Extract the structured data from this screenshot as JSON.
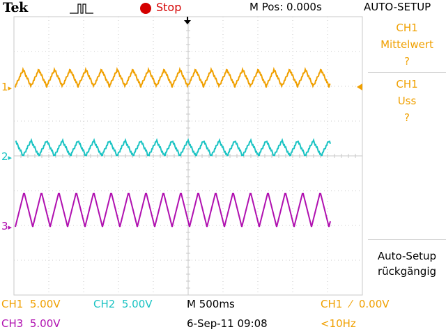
{
  "header": {
    "brand": "Tek",
    "status": "Stop",
    "mpos": "M Pos: 0.000s",
    "menu_title": "AUTO-SETUP"
  },
  "menu": {
    "item1": [
      "CH1",
      "Mittelwert",
      "?"
    ],
    "item2": [
      "CH1",
      "Uss",
      "?"
    ],
    "item3": [
      "Auto-Setup",
      "rückgängig"
    ]
  },
  "channels": {
    "ch1_marker": "1",
    "ch2_marker": "2",
    "ch3_marker": "3"
  },
  "footer": {
    "ch1": "CH1",
    "ch1_scale": "5.00V",
    "ch2": "CH2",
    "ch2_scale": "5.00V",
    "ch3": "CH3",
    "ch3_scale": "5.00V",
    "timebase": "M 500ms",
    "datetime": "6-Sep-11 09:08",
    "trigger_source": "CH1",
    "trigger_level": "0.00V",
    "freq": "<10Hz"
  },
  "colors": {
    "ch1": "#f0a000",
    "ch2": "#19c3c3",
    "ch3": "#b010b0",
    "grid": "#c8c8c8",
    "stop": "#d40000"
  }
}
